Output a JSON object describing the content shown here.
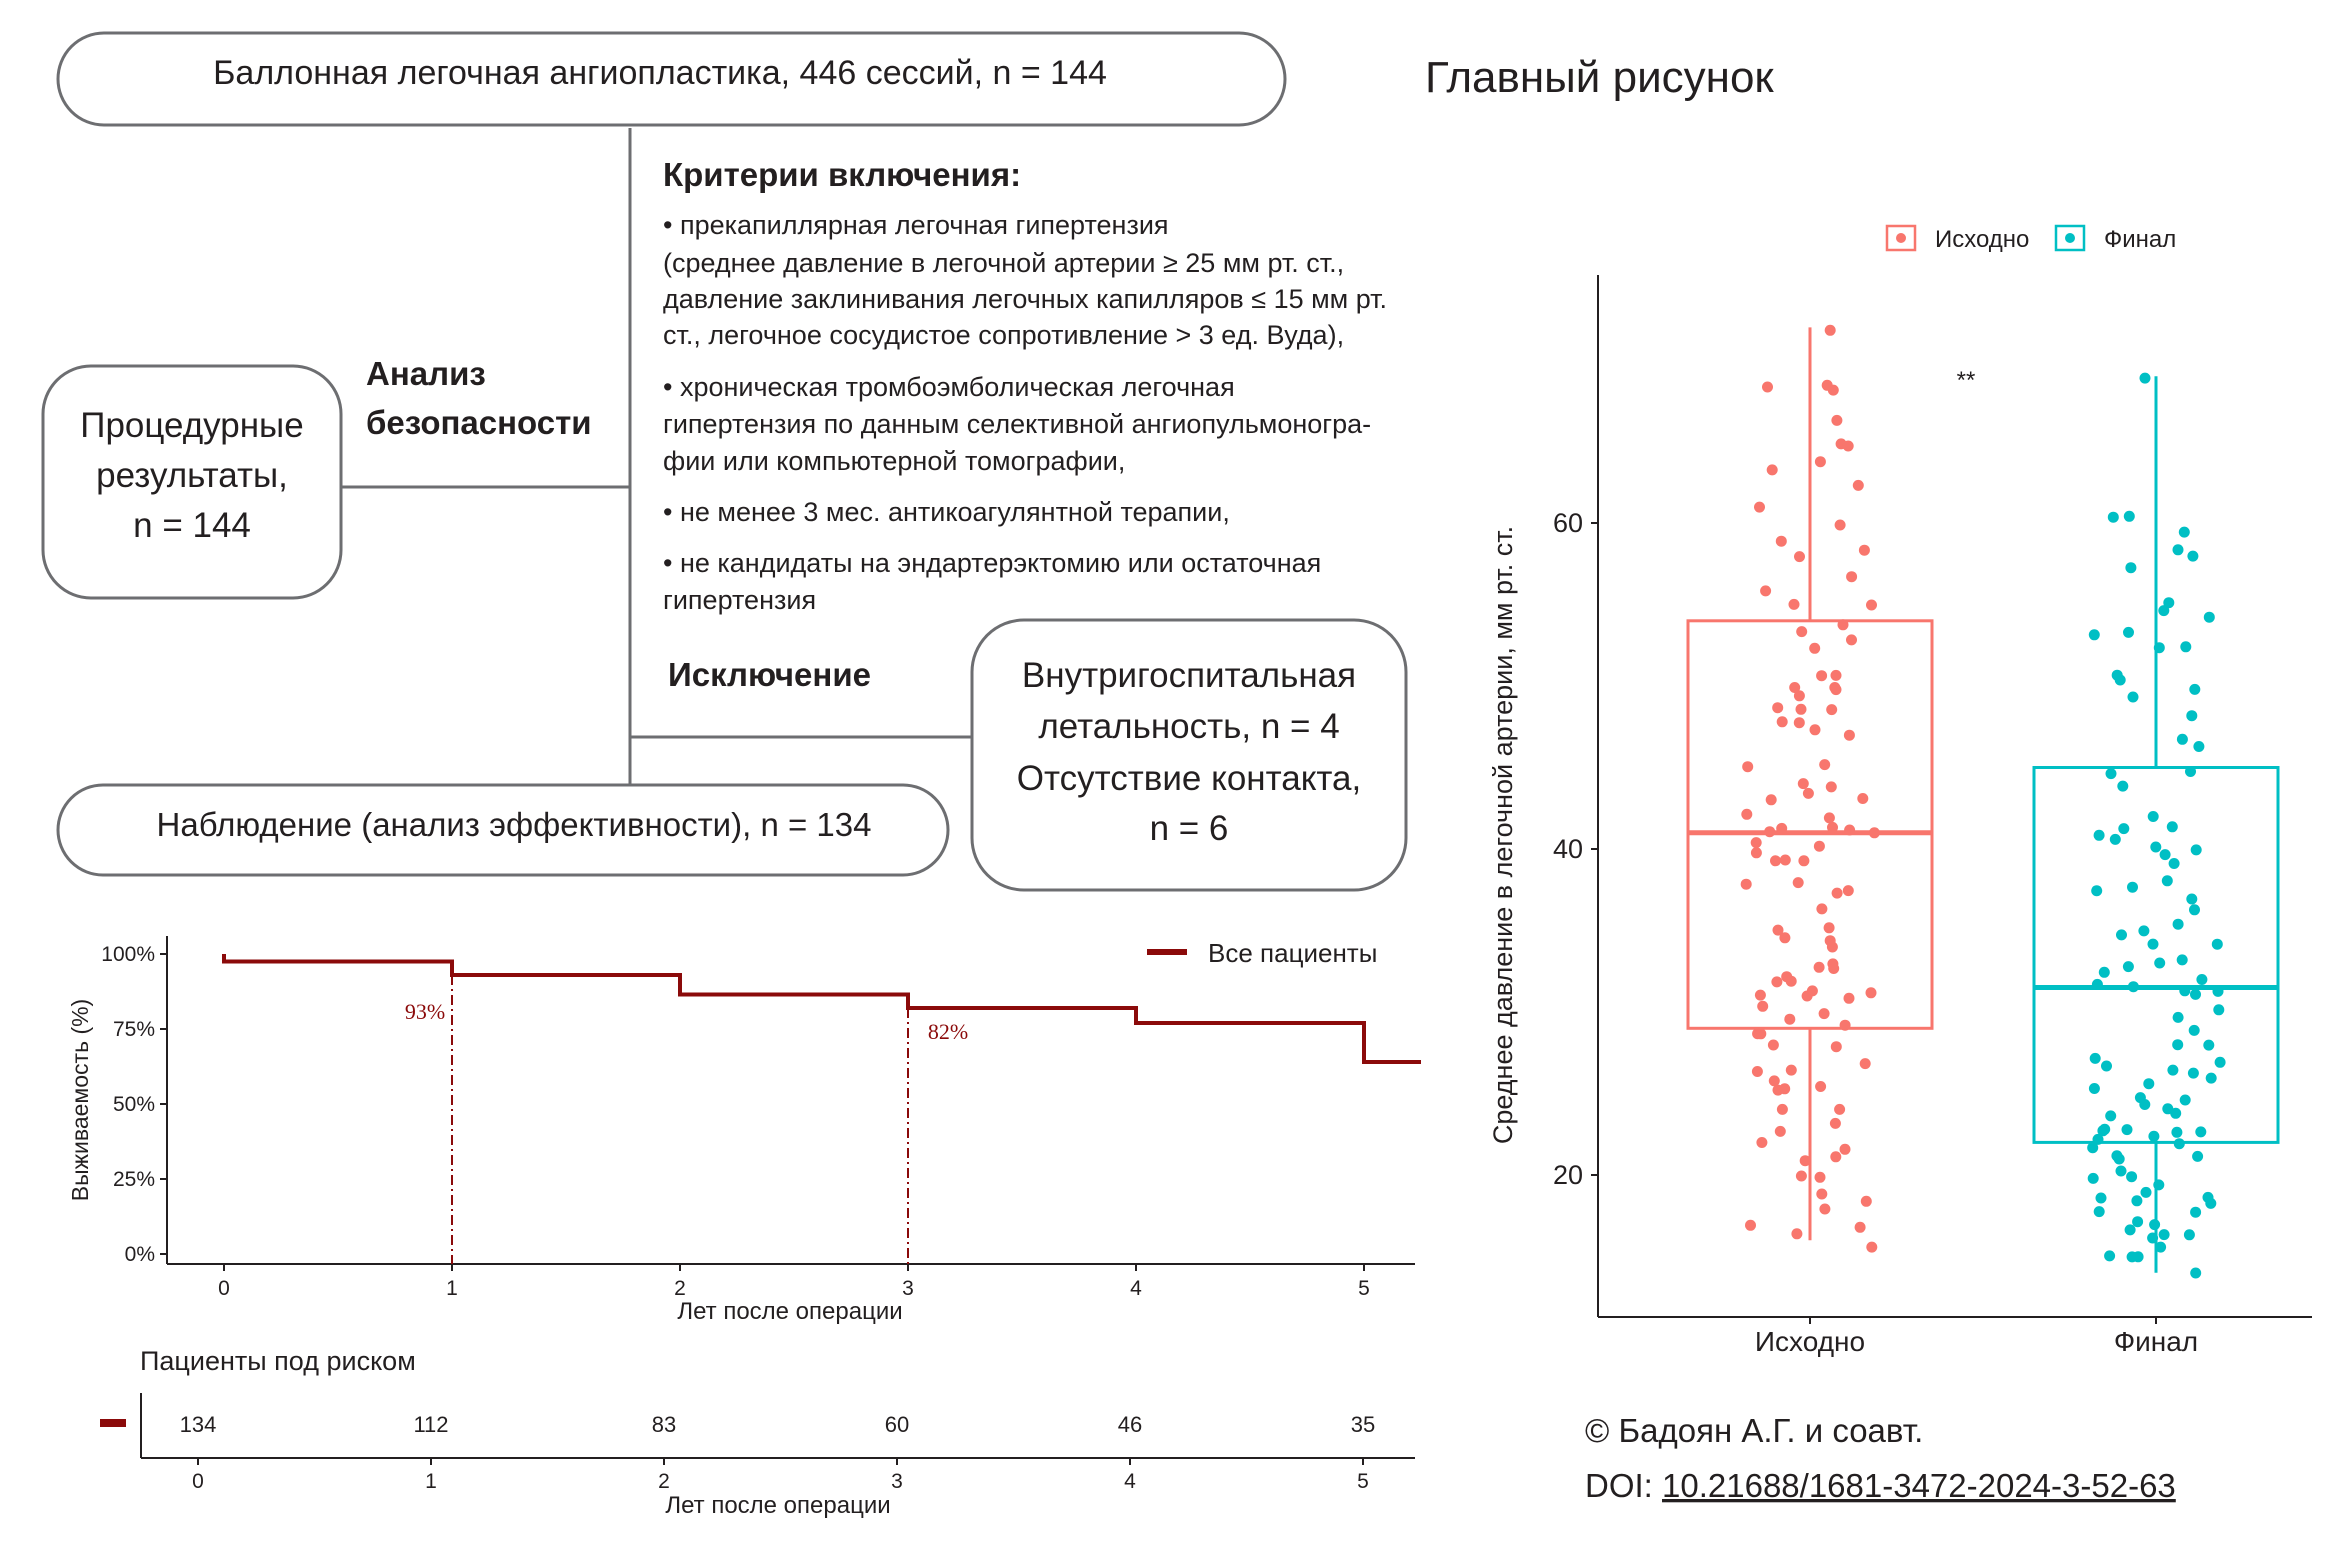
{
  "figure_title": "Главный рисунок",
  "flow": {
    "top_box": "Баллонная легочная ангиопластика, 446 сессий, n = 144",
    "left_box": [
      "Процедурные",
      "результаты,",
      "n = 144"
    ],
    "safety_label": [
      "Анализ",
      "безопасности"
    ],
    "criteria_title": "Критерии включения:",
    "criteria_lines": [
      "• прекапиллярная легочная гипертензия",
      "(среднее давление в легочной артерии ≥ 25 мм рт. ст.,",
      "давление заклинивания легочных капилляров ≤ 15 мм рт.",
      "ст., легочное сосудистое сопротивление > 3 ед. Вуда),",
      "• хроническая тромбоэмболическая легочная",
      "гипертензия по данным селективной ангиопульмоногра-",
      "фии или компьютерной томографии,",
      "• не менее 3 мес. антикоагулянтной терапии,",
      "• не кандидаты на эндартерэктомию или остаточная",
      "гипертензия"
    ],
    "exclusion_label": "Исключение",
    "exclusion_box": [
      "Внутригоспитальная",
      "летальность, n = 4",
      "Отсутствие контакта,",
      "n = 6"
    ],
    "bottom_box": "Наблюдение (анализ эффективности), n = 134"
  },
  "km": {
    "ylabel": "Выживаемость (%)",
    "xlabel": "Лет после операции",
    "yticks": [
      "0%",
      "25%",
      "50%",
      "75%",
      "100%"
    ],
    "xticks": [
      "0",
      "1",
      "2",
      "3",
      "4",
      "5"
    ],
    "legend": "Все пациенты",
    "ann1": "93%",
    "ann2": "82%",
    "risk_title": "Пациенты под риском",
    "risk_values": [
      "134",
      "112",
      "83",
      "60",
      "46",
      "35"
    ],
    "risk_xticks": [
      "0",
      "1",
      "2",
      "3",
      "4",
      "5"
    ],
    "risk_xlabel": "Лет после операции",
    "line_color": "#8b0a0a"
  },
  "boxplot": {
    "legend": [
      "Исходно",
      "Финал"
    ],
    "significance": "**",
    "ylabel": "Среднее давление в легочной артерии, мм рт. ст.",
    "yticks": [
      "20",
      "40",
      "60"
    ],
    "categories": [
      "Исходно",
      "Финал"
    ],
    "colors": [
      "#f8766d",
      "#00bfc4"
    ]
  },
  "credit": {
    "line1": "© Бадоян А.Г. и соавт.",
    "doi_prefix": "DOI: ",
    "doi": "10.21688/1681-3472-2024-3-52-63"
  },
  "chart_data": [
    {
      "type": "line",
      "title": "",
      "xlabel": "Лет после операции",
      "ylabel": "Выживаемость (%)",
      "xlim": [
        -0.25,
        5.25
      ],
      "ylim": [
        0,
        100
      ],
      "series": [
        {
          "name": "Все пациенты",
          "step": true,
          "points": [
            [
              0,
              100
            ],
            [
              0,
              97.5
            ],
            [
              1,
              97.5
            ],
            [
              1,
              93
            ],
            [
              2,
              93
            ],
            [
              2,
              86.5
            ],
            [
              3,
              86.5
            ],
            [
              3,
              82
            ],
            [
              4,
              82
            ],
            [
              4,
              77
            ],
            [
              5,
              77
            ],
            [
              5,
              64
            ],
            [
              5.25,
              64
            ]
          ]
        }
      ],
      "annotations": [
        {
          "x": 1,
          "y": 93,
          "text": "93%"
        },
        {
          "x": 3,
          "y": 82,
          "text": "82%"
        }
      ],
      "risk_table": {
        "x": [
          0,
          1,
          2,
          3,
          4,
          5
        ],
        "at_risk": [
          134,
          112,
          83,
          60,
          46,
          35
        ]
      }
    },
    {
      "type": "box",
      "title": "",
      "xlabel": "",
      "ylabel": "Среднее давление в легочной артерии, мм рт. ст.",
      "ylim": [
        12,
        76
      ],
      "categories": [
        "Исходно",
        "Финал"
      ],
      "series": [
        {
          "name": "Исходно",
          "min": 16,
          "q1": 29,
          "median": 41,
          "q3": 54,
          "max": 72
        },
        {
          "name": "Финал",
          "min": 14,
          "q1": 22,
          "median": 31.5,
          "q3": 45,
          "max": 69
        }
      ],
      "points": {
        "Исходно": [
          72,
          68,
          68,
          68,
          66,
          65,
          65,
          64,
          63,
          62,
          61,
          60,
          59,
          58,
          58,
          57,
          56,
          55,
          55,
          54,
          53,
          53,
          52,
          51,
          51,
          50,
          50,
          50,
          49,
          49,
          49,
          49,
          48,
          48,
          47,
          47,
          45,
          45,
          44,
          44,
          43,
          43,
          43,
          42,
          42,
          41,
          41,
          41,
          41,
          41,
          40,
          40,
          40,
          39,
          39,
          39,
          38,
          38,
          37,
          37,
          36,
          35,
          35,
          35,
          34,
          34,
          33,
          33,
          33,
          32,
          32,
          32,
          31,
          31,
          31,
          31,
          31,
          30,
          30,
          30,
          29,
          29,
          29,
          28,
          28,
          27,
          26,
          26,
          26,
          25,
          25,
          25,
          24,
          24,
          23,
          23,
          22,
          22,
          21,
          21,
          20,
          20,
          19,
          18,
          18,
          17,
          17,
          16,
          16
        ],
        "Финал": [
          69,
          60,
          60,
          59,
          58,
          58,
          57,
          55,
          55,
          54,
          53,
          53,
          52,
          52,
          51,
          50,
          50,
          49,
          48,
          47,
          46,
          45,
          45,
          44,
          42,
          41,
          41,
          41,
          41,
          40,
          40,
          40,
          39,
          38,
          38,
          37,
          37,
          36,
          35,
          35,
          35,
          34,
          34,
          33,
          33,
          33,
          32,
          32,
          32,
          32,
          31,
          31,
          31,
          30,
          30,
          29,
          28,
          28,
          27,
          27,
          27,
          26,
          26,
          26,
          26,
          25,
          25,
          25,
          24,
          24,
          24,
          24,
          23,
          23,
          23,
          23,
          23,
          22,
          22,
          22,
          22,
          21,
          21,
          21,
          20,
          20,
          20,
          19,
          19,
          19,
          19,
          18,
          18,
          18,
          18,
          17,
          17,
          17,
          16,
          16,
          16,
          16,
          15,
          15,
          15,
          14
        ]
      },
      "significance": "**"
    }
  ]
}
